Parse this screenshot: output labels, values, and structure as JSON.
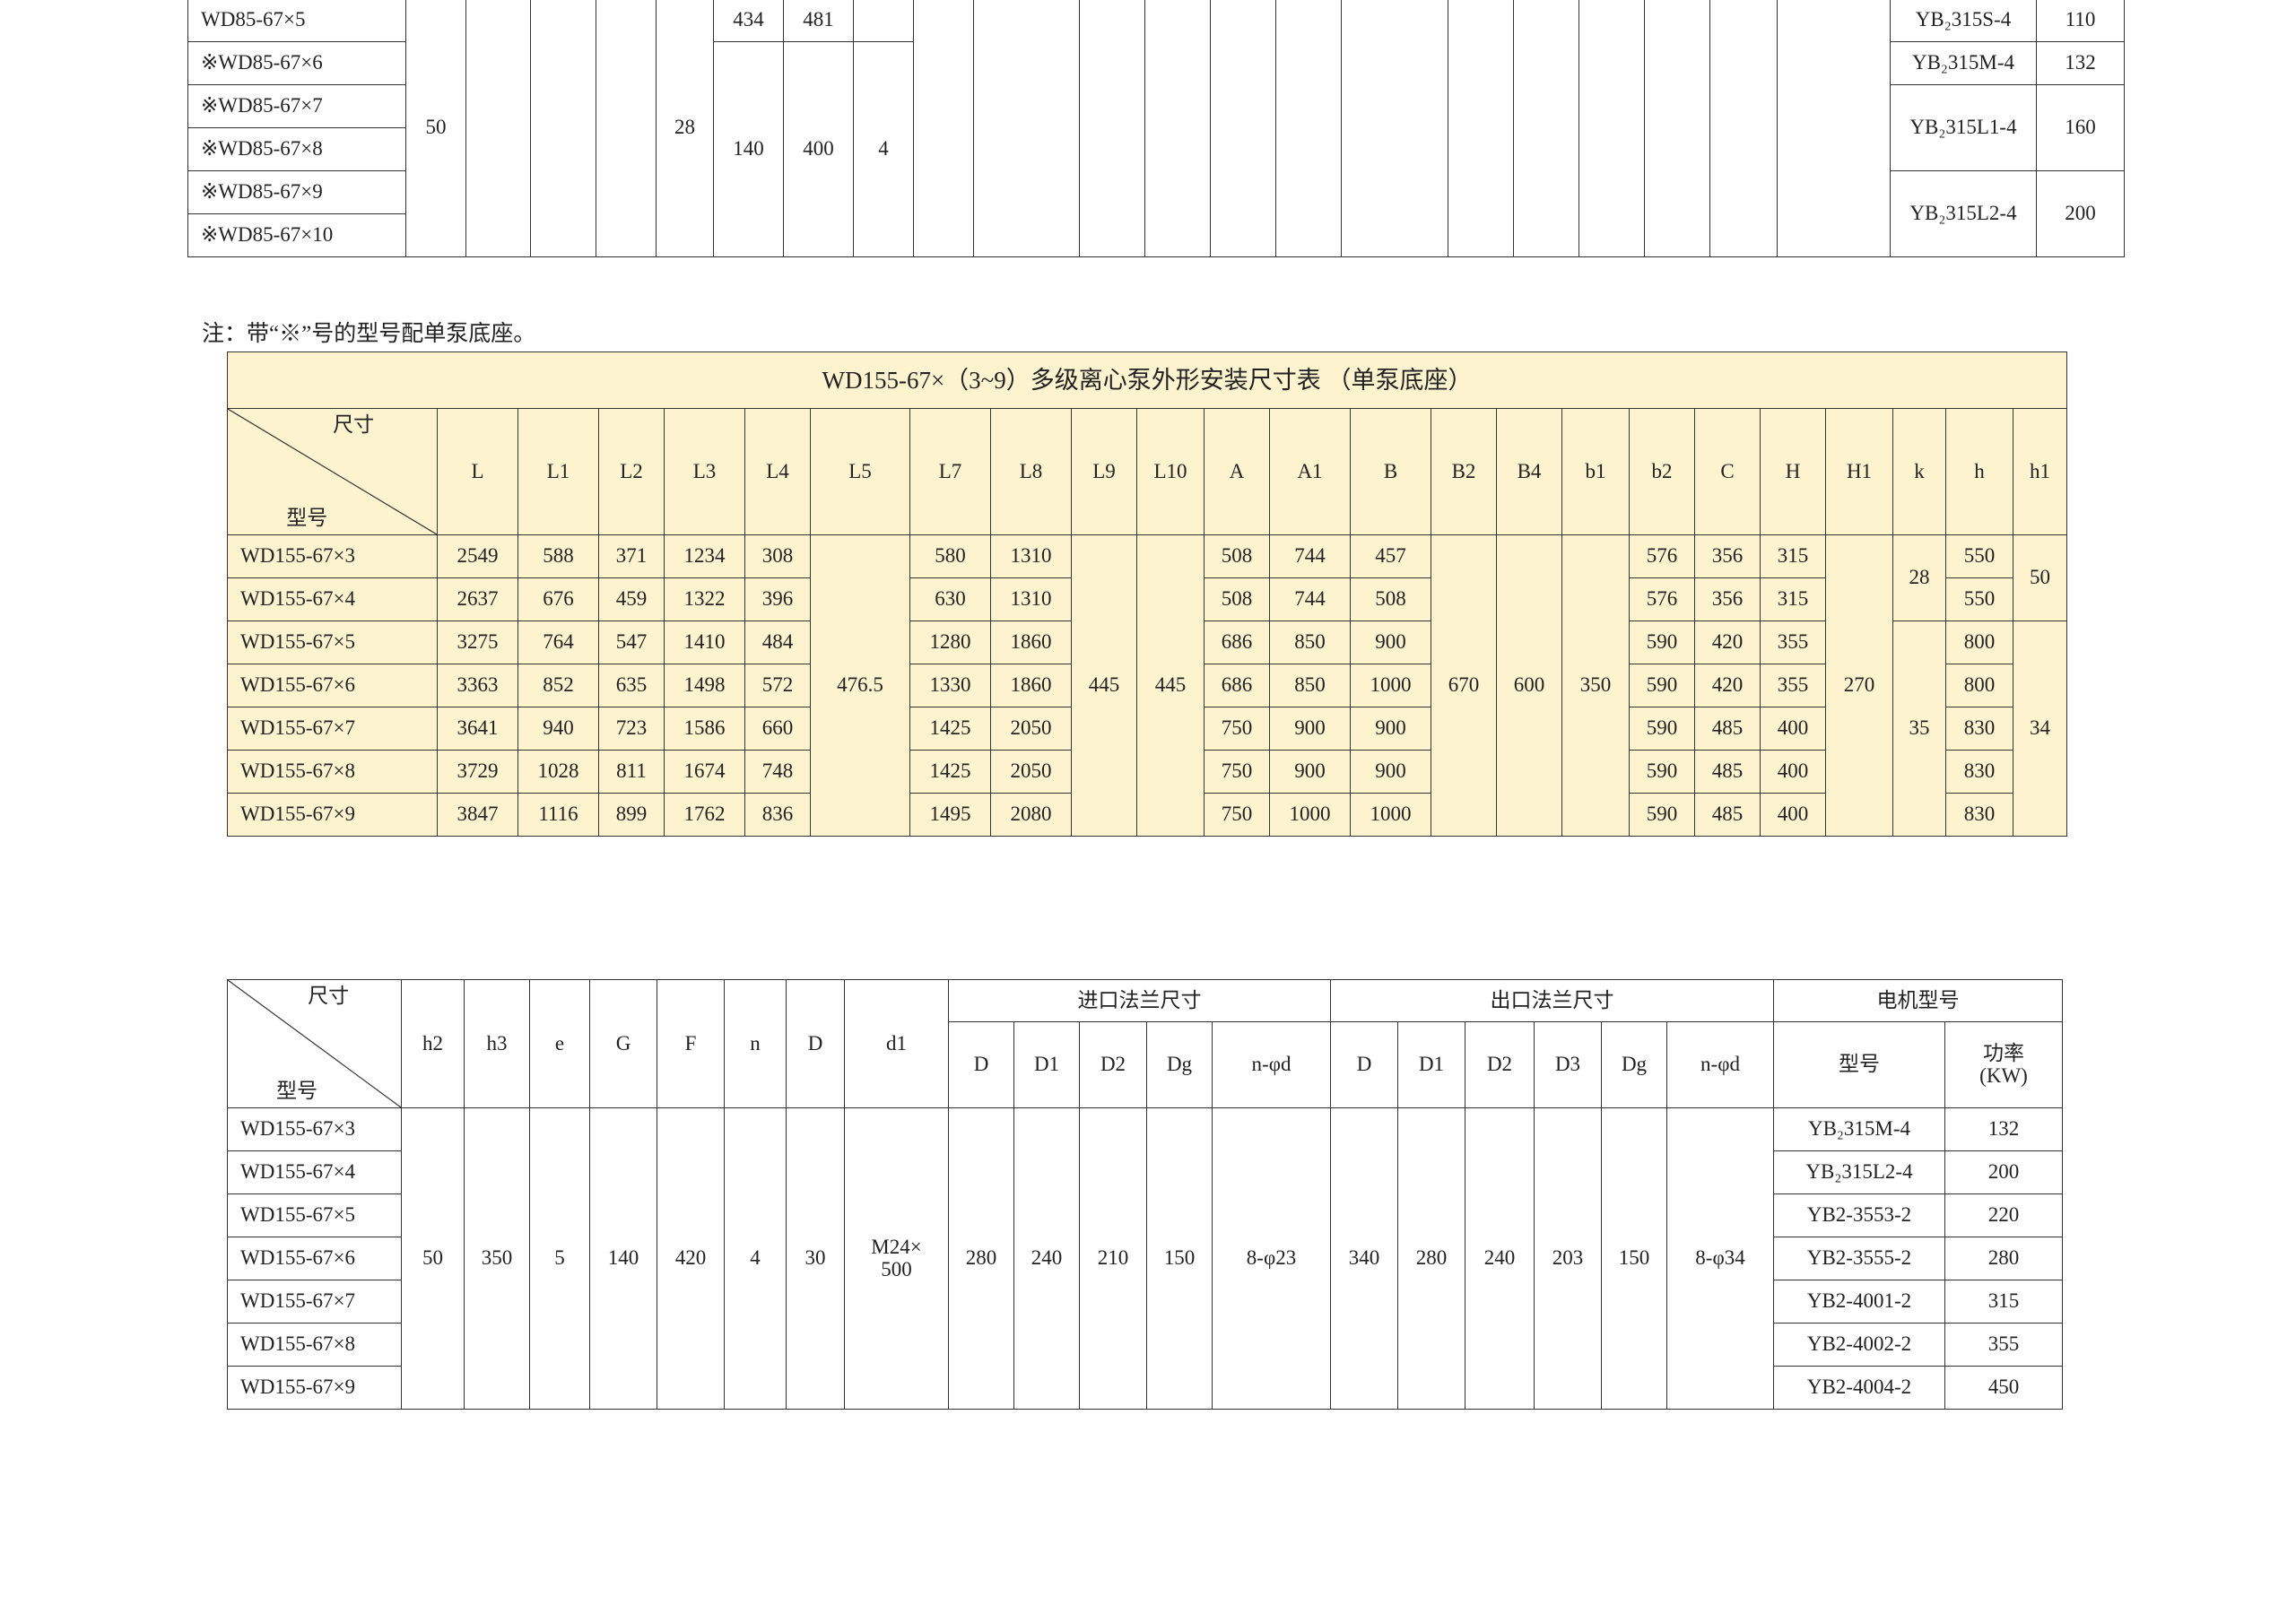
{
  "table1": {
    "rows": [
      [
        "WD85-67×5",
        "50",
        "",
        "",
        "",
        "28",
        "434",
        "481",
        "",
        "",
        "",
        "",
        "",
        "",
        "",
        "",
        "",
        "",
        "",
        "",
        "",
        "",
        "YB₂315S-4",
        "110"
      ],
      [
        "※WD85-67×6",
        null,
        null,
        null,
        null,
        null,
        "140",
        "400",
        "4",
        null,
        null,
        null,
        null,
        null,
        null,
        null,
        null,
        null,
        null,
        null,
        null,
        null,
        "YB₂315M-4",
        "132"
      ],
      [
        "※WD85-67×7",
        null,
        null,
        null,
        null,
        null,
        null,
        null,
        null,
        null,
        null,
        null,
        null,
        null,
        null,
        null,
        null,
        null,
        null,
        null,
        null,
        null,
        "YB₂315L1-4",
        "160"
      ],
      [
        "※WD85-67×8",
        null,
        null,
        null,
        null,
        null,
        null,
        null,
        null,
        null,
        null,
        null,
        null,
        null,
        null,
        null,
        null,
        null,
        null,
        null,
        null,
        null,
        null,
        null
      ],
      [
        "※WD85-67×9",
        null,
        null,
        null,
        null,
        null,
        null,
        null,
        null,
        null,
        null,
        null,
        null,
        null,
        null,
        null,
        null,
        null,
        null,
        null,
        null,
        null,
        "YB₂315L2-4",
        "200"
      ],
      [
        "※WD85-67×10",
        null,
        null,
        null,
        null,
        null,
        null,
        null,
        null,
        null,
        null,
        null,
        null,
        null,
        null,
        null,
        null,
        null,
        null,
        null,
        null,
        null,
        null,
        null
      ]
    ]
  },
  "note": "注：带“※”号的型号配单泵底座。",
  "table2": {
    "title": "WD155-67×（3~9）多级离心泵外形安装尺寸表 （单泵底座）",
    "diag_top": "尺寸",
    "diag_bottom": "型号",
    "headers": [
      "L",
      "L1",
      "L2",
      "L3",
      "L4",
      "L5",
      "L7",
      "L8",
      "L9",
      "L10",
      "A",
      "A1",
      "B",
      "B2",
      "B4",
      "b1",
      "b2",
      "C",
      "H",
      "H1",
      "k",
      "h",
      "h1"
    ],
    "rows": [
      [
        "WD155-67×3",
        "2549",
        "588",
        "371",
        "1234",
        "308",
        "476.5",
        "580",
        "1310",
        "445",
        "445",
        "508",
        "744",
        "457",
        "670",
        "600",
        "350",
        "576",
        "356",
        "315",
        "270",
        "28",
        "550",
        "50"
      ],
      [
        "WD155-67×4",
        "2637",
        "676",
        "459",
        "1322",
        "396",
        null,
        "630",
        "1310",
        null,
        null,
        "508",
        "744",
        "508",
        null,
        null,
        null,
        "576",
        "356",
        "315",
        null,
        null,
        "550",
        null
      ],
      [
        "WD155-67×5",
        "3275",
        "764",
        "547",
        "1410",
        "484",
        null,
        "1280",
        "1860",
        null,
        null,
        "686",
        "850",
        "900",
        null,
        null,
        null,
        "590",
        "420",
        "355",
        null,
        "35",
        "800",
        "34"
      ],
      [
        "WD155-67×6",
        "3363",
        "852",
        "635",
        "1498",
        "572",
        null,
        "1330",
        "1860",
        null,
        null,
        "686",
        "850",
        "1000",
        null,
        null,
        null,
        "590",
        "420",
        "355",
        null,
        null,
        "800",
        null
      ],
      [
        "WD155-67×7",
        "3641",
        "940",
        "723",
        "1586",
        "660",
        null,
        "1425",
        "2050",
        null,
        null,
        "750",
        "900",
        "900",
        null,
        null,
        null,
        "590",
        "485",
        "400",
        null,
        null,
        "830",
        null
      ],
      [
        "WD155-67×8",
        "3729",
        "1028",
        "811",
        "1674",
        "748",
        null,
        "1425",
        "2050",
        null,
        null,
        "750",
        "900",
        "900",
        null,
        null,
        null,
        "590",
        "485",
        "400",
        null,
        null,
        "830",
        null
      ],
      [
        "WD155-67×9",
        "3847",
        "1116",
        "899",
        "1762",
        "836",
        null,
        "1495",
        "2080",
        null,
        null,
        "750",
        "1000",
        "1000",
        null,
        null,
        null,
        "590",
        "485",
        "400",
        null,
        null,
        "830",
        null
      ]
    ]
  },
  "table3": {
    "diag_top": "尺寸",
    "diag_bottom": "型号",
    "headers": [
      "h2",
      "h3",
      "e",
      "G",
      "F",
      "n",
      "D",
      "d1"
    ],
    "group_inlet": "进口法兰尺寸",
    "group_outlet": "出口法兰尺寸",
    "group_motor": "电机型号",
    "inlet_headers": [
      "D",
      "D1",
      "D2",
      "Dg",
      "n-φd"
    ],
    "outlet_headers": [
      "D",
      "D1",
      "D2",
      "D3",
      "Dg",
      "n-φd"
    ],
    "motor_type": "型号",
    "motor_power": "功率\n(KW)",
    "rows": [
      [
        "WD155-67×3",
        "50",
        "350",
        "5",
        "140",
        "420",
        "4",
        "30",
        "M24×\n500",
        "280",
        "240",
        "210",
        "150",
        "8-φ23",
        "340",
        "280",
        "240",
        "203",
        "150",
        "8-φ34",
        "YB₂315M-4",
        "132"
      ],
      [
        "WD155-67×4",
        null,
        null,
        null,
        null,
        null,
        null,
        null,
        null,
        null,
        null,
        null,
        null,
        null,
        null,
        null,
        null,
        null,
        null,
        null,
        "YB₂315L2-4",
        "200"
      ],
      [
        "WD155-67×5",
        null,
        null,
        null,
        null,
        null,
        null,
        null,
        null,
        null,
        null,
        null,
        null,
        null,
        null,
        null,
        null,
        null,
        null,
        null,
        "YB2-3553-2",
        "220"
      ],
      [
        "WD155-67×6",
        null,
        null,
        null,
        null,
        null,
        null,
        null,
        null,
        null,
        null,
        null,
        null,
        null,
        null,
        null,
        null,
        null,
        null,
        null,
        "YB2-3555-2",
        "280"
      ],
      [
        "WD155-67×7",
        null,
        null,
        null,
        null,
        null,
        null,
        null,
        null,
        null,
        null,
        null,
        null,
        null,
        null,
        null,
        null,
        null,
        null,
        null,
        "YB2-4001-2",
        "315"
      ],
      [
        "WD155-67×8",
        null,
        null,
        null,
        null,
        null,
        null,
        null,
        null,
        null,
        null,
        null,
        null,
        null,
        null,
        null,
        null,
        null,
        null,
        null,
        "YB2-4002-2",
        "355"
      ],
      [
        "WD155-67×9",
        null,
        null,
        null,
        null,
        null,
        null,
        null,
        null,
        null,
        null,
        null,
        null,
        null,
        null,
        null,
        null,
        null,
        null,
        null,
        "YB2-4004-2",
        "450"
      ]
    ]
  }
}
